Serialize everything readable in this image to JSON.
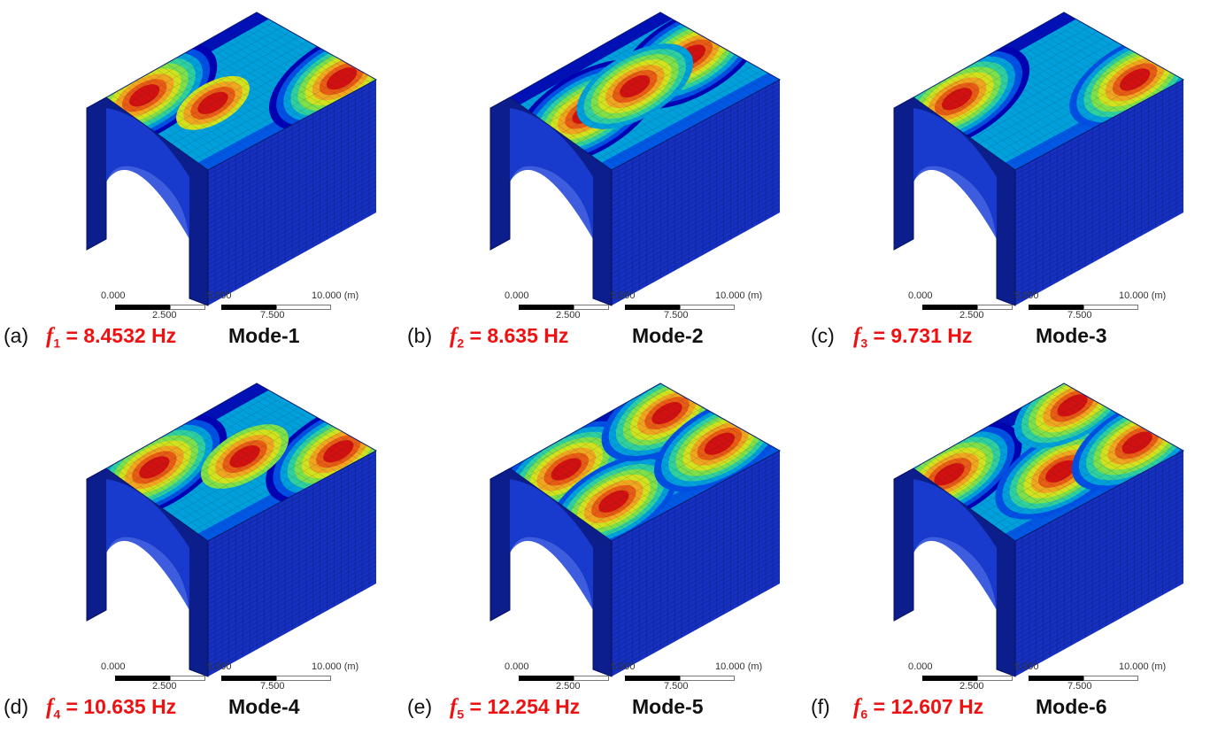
{
  "colors": {
    "contour": [
      "#0000b4",
      "#0050e6",
      "#00a0dc",
      "#2fd0a0",
      "#7ee04a",
      "#d2e21e",
      "#f0a61e",
      "#e85c14",
      "#d21010"
    ],
    "block_face": "#1630c2",
    "block_side": "#0c1d8c",
    "mesh_line": "#0a1a6a",
    "frequency_text": "#ee1111"
  },
  "panels": [
    {
      "letter": "(a)",
      "freq_symbol": "f",
      "freq_index": "1",
      "freq_value": "= 8.4532 Hz",
      "mode": "Mode-1",
      "scale": {
        "tick_top": [
          "0.000",
          "5.000",
          "10.000 (m)"
        ],
        "tick_bottom": [
          "2.500",
          "7.500"
        ]
      },
      "hotspots": [
        {
          "u": 0.15,
          "v": 0.15,
          "w": 9
        },
        {
          "u": 0.9,
          "v": 0.85,
          "w": 9
        },
        {
          "u": 0.35,
          "v": 0.5,
          "w": 4
        }
      ]
    },
    {
      "letter": "(b)",
      "freq_symbol": "f",
      "freq_index": "2",
      "freq_value": "= 8.635 Hz",
      "mode": "Mode-2",
      "scale": {
        "tick_top": [
          "0.000",
          "5.000",
          "10.000 (m)"
        ],
        "tick_bottom": [
          "2.500",
          "7.500"
        ]
      },
      "hotspots": [
        {
          "u": 0.2,
          "v": 0.45,
          "w": 9
        },
        {
          "u": 0.85,
          "v": 0.45,
          "w": 9
        },
        {
          "u": 0.5,
          "v": 0.45,
          "w": 7
        }
      ]
    },
    {
      "letter": "(c)",
      "freq_symbol": "f",
      "freq_index": "3",
      "freq_value": "= 9.731 Hz",
      "mode": "Mode-3",
      "scale": {
        "tick_top": [
          "0.000",
          "5.000",
          "10.000 (m)"
        ],
        "tick_bottom": [
          "2.500",
          "7.500"
        ]
      },
      "hotspots": [
        {
          "u": 0.15,
          "v": 0.2,
          "w": 9
        },
        {
          "u": 0.85,
          "v": 0.8,
          "w": 8
        }
      ]
    },
    {
      "letter": "(d)",
      "freq_symbol": "f",
      "freq_index": "4",
      "freq_value": "= 10.635 Hz",
      "mode": "Mode-4",
      "scale": {
        "tick_top": [
          "0.000",
          "5.000",
          "10.000 (m)"
        ],
        "tick_bottom": [
          "2.500",
          "7.500"
        ]
      },
      "hotspots": [
        {
          "u": 0.18,
          "v": 0.2,
          "w": 9
        },
        {
          "u": 0.88,
          "v": 0.85,
          "w": 9
        },
        {
          "u": 0.55,
          "v": 0.5,
          "w": 5
        }
      ]
    },
    {
      "letter": "(e)",
      "freq_symbol": "f",
      "freq_index": "5",
      "freq_value": "= 12.254 Hz",
      "mode": "Mode-5",
      "scale": {
        "tick_top": [
          "0.000",
          "5.000",
          "10.000 (m)"
        ],
        "tick_bottom": [
          "2.500",
          "7.500"
        ]
      },
      "hotspots": [
        {
          "u": 0.2,
          "v": 0.25,
          "w": 8
        },
        {
          "u": 0.2,
          "v": 0.7,
          "w": 8
        },
        {
          "u": 0.85,
          "v": 0.25,
          "w": 8
        },
        {
          "u": 0.85,
          "v": 0.7,
          "w": 8
        }
      ]
    },
    {
      "letter": "(f)",
      "freq_symbol": "f",
      "freq_index": "6",
      "freq_value": "= 12.607 Hz",
      "mode": "Mode-6",
      "scale": {
        "tick_top": [
          "0.000",
          "5.000",
          "10.000 (m)"
        ],
        "tick_bottom": [
          "2.500",
          "7.500"
        ]
      },
      "hotspots": [
        {
          "u": 0.1,
          "v": 0.2,
          "w": 9
        },
        {
          "u": 0.5,
          "v": 0.65,
          "w": 8
        },
        {
          "u": 0.9,
          "v": 0.2,
          "w": 7
        },
        {
          "u": 0.9,
          "v": 0.75,
          "w": 8
        }
      ]
    }
  ]
}
